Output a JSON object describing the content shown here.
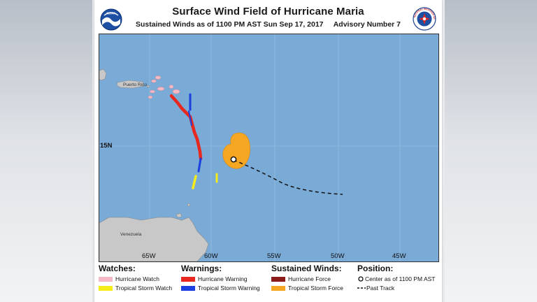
{
  "header": {
    "title": "Surface Wind Field of Hurricane Maria",
    "subtitle": "Sustained Winds as of 1100 PM AST Sun Sep 17, 2017     Advisory Number 7"
  },
  "logos": {
    "noaa_text": "NOAA",
    "nws_text": "NATIONAL WEATHER SERVICE"
  },
  "map": {
    "lon_labels": [
      "65W",
      "60W",
      "55W",
      "50W",
      "45W"
    ],
    "lat_labels": [
      "15N"
    ],
    "places": [
      "Puerto Rico",
      "Venezuela"
    ],
    "colors": {
      "ocean": "#7aaad6",
      "land": "#c8c8c8",
      "tropical_storm_force": "#f5a623",
      "hurricane_warning": "#e8281e",
      "tropical_storm_warning": "#1c3fe0",
      "tropical_storm_watch": "#f5ec1a",
      "hurricane_watch": "#f4b9c4"
    }
  },
  "legend": {
    "watches": {
      "heading": "Watches:",
      "items": [
        "Hurricane Watch",
        "Tropical Storm Watch"
      ]
    },
    "warnings": {
      "heading": "Warnings:",
      "items": [
        "Hurricane Warning",
        "Tropical Storm Warning"
      ]
    },
    "winds": {
      "heading": "Sustained Winds:",
      "items": [
        "Hurricane Force",
        "Tropical Storm Force"
      ]
    },
    "position": {
      "heading": "Position:",
      "items": [
        "Center as of 1100 PM AST",
        "Past Track"
      ]
    }
  }
}
